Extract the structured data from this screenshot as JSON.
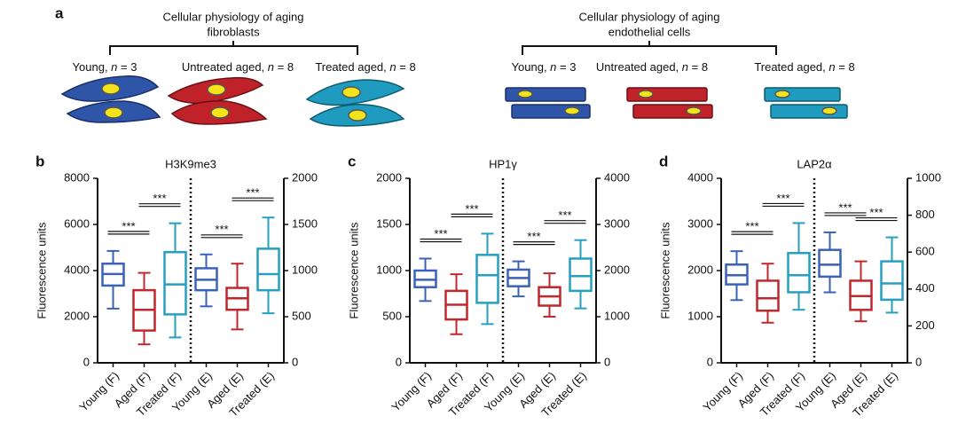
{
  "panel_a": {
    "label": "a",
    "groups": [
      {
        "title": [
          "Cellular physiology of aging",
          "fibroblasts"
        ],
        "conditions": [
          [
            "Young, ",
            "n",
            " = 3"
          ],
          [
            "Untreated aged, ",
            "n",
            " = 8"
          ],
          [
            "Treated aged, ",
            "n",
            " = 8"
          ]
        ]
      },
      {
        "title": [
          "Cellular physiology of aging",
          "endothelial cells"
        ],
        "conditions": [
          [
            "Young, ",
            "n",
            " = 3"
          ],
          [
            "Untreated aged, ",
            "n",
            " = 8"
          ],
          [
            "Treated aged, ",
            "n",
            " = 8"
          ]
        ]
      }
    ]
  },
  "chart_data": [
    {
      "type": "box",
      "panel_label": "b",
      "title": "H3K9me3",
      "ylabel": "Fluorescence units",
      "ylim": [
        0,
        8000
      ],
      "yticks": [
        0,
        2000,
        4000,
        6000,
        8000
      ],
      "y2lim": [
        0,
        2000
      ],
      "y2ticks": [
        0,
        500,
        1000,
        1500,
        2000
      ],
      "series": [
        {
          "name": "Young (F)",
          "color": "#3b62b8",
          "axis": "y",
          "low": 2350,
          "q1": 3350,
          "median": 3850,
          "q3": 4300,
          "high": 4850
        },
        {
          "name": "Aged (F)",
          "color": "#c0282e",
          "axis": "y",
          "low": 800,
          "q1": 1400,
          "median": 2300,
          "q3": 3150,
          "high": 3900
        },
        {
          "name": "Treated (F)",
          "color": "#27a0bf",
          "axis": "y",
          "low": 1100,
          "q1": 2100,
          "median": 3400,
          "q3": 4800,
          "high": 6050
        },
        {
          "name": "Young (E)",
          "color": "#3b62b8",
          "axis": "y2",
          "low": 612,
          "q1": 787,
          "median": 900,
          "q3": 1025,
          "high": 1175
        },
        {
          "name": "Aged (E)",
          "color": "#c0282e",
          "axis": "y2",
          "low": 362,
          "q1": 575,
          "median": 700,
          "q3": 812,
          "high": 1075
        },
        {
          "name": "Treated (E)",
          "color": "#27a0bf",
          "axis": "y2",
          "low": 537,
          "q1": 787,
          "median": 962,
          "q3": 1237,
          "high": 1575
        }
      ],
      "comparisons": [
        {
          "label": "***",
          "pair": [
            0,
            1
          ]
        },
        {
          "label": "***",
          "pair": [
            1,
            2
          ]
        },
        {
          "label": "***",
          "pair": [
            3,
            4
          ]
        },
        {
          "label": "***",
          "pair": [
            4,
            5
          ]
        }
      ]
    },
    {
      "type": "box",
      "panel_label": "c",
      "title": "HP1γ",
      "ylabel": "Fluorescence units",
      "ylim": [
        0,
        2000
      ],
      "yticks": [
        0,
        500,
        1000,
        1500,
        2000
      ],
      "y2lim": [
        0,
        4000
      ],
      "y2ticks": [
        0,
        1000,
        2000,
        3000,
        4000
      ],
      "series": [
        {
          "name": "Young (F)",
          "color": "#3b62b8",
          "axis": "y",
          "low": 670,
          "q1": 820,
          "median": 900,
          "q3": 1000,
          "high": 1130
        },
        {
          "name": "Aged (F)",
          "color": "#c0282e",
          "axis": "y",
          "low": 310,
          "q1": 470,
          "median": 630,
          "q3": 780,
          "high": 960
        },
        {
          "name": "Treated (F)",
          "color": "#27a0bf",
          "axis": "y",
          "low": 420,
          "q1": 650,
          "median": 950,
          "q3": 1170,
          "high": 1400
        },
        {
          "name": "Young (E)",
          "color": "#3b62b8",
          "axis": "y2",
          "low": 1440,
          "q1": 1660,
          "median": 1840,
          "q3": 2020,
          "high": 2200
        },
        {
          "name": "Aged (E)",
          "color": "#c0282e",
          "axis": "y2",
          "low": 1000,
          "q1": 1240,
          "median": 1440,
          "q3": 1640,
          "high": 1940
        },
        {
          "name": "Treated (E)",
          "color": "#27a0bf",
          "axis": "y2",
          "low": 1180,
          "q1": 1560,
          "median": 1880,
          "q3": 2260,
          "high": 2660
        }
      ],
      "comparisons": [
        {
          "label": "***",
          "pair": [
            0,
            1
          ]
        },
        {
          "label": "***",
          "pair": [
            1,
            2
          ]
        },
        {
          "label": "***",
          "pair": [
            3,
            4
          ]
        },
        {
          "label": "***",
          "pair": [
            4,
            5
          ]
        }
      ]
    },
    {
      "type": "box",
      "panel_label": "d",
      "title": "LAP2α",
      "ylabel": "Fluorescence units",
      "ylim": [
        0,
        4000
      ],
      "yticks": [
        0,
        1000,
        2000,
        3000,
        4000
      ],
      "y2lim": [
        0,
        1000
      ],
      "y2ticks": [
        0,
        200,
        400,
        600,
        800,
        1000
      ],
      "series": [
        {
          "name": "Young (F)",
          "color": "#3b62b8",
          "axis": "y",
          "low": 1360,
          "q1": 1700,
          "median": 1900,
          "q3": 2130,
          "high": 2420
        },
        {
          "name": "Aged (F)",
          "color": "#c0282e",
          "axis": "y",
          "low": 870,
          "q1": 1130,
          "median": 1400,
          "q3": 1780,
          "high": 2150
        },
        {
          "name": "Treated (F)",
          "color": "#27a0bf",
          "axis": "y",
          "low": 1150,
          "q1": 1530,
          "median": 1900,
          "q3": 2380,
          "high": 3030
        },
        {
          "name": "Young (E)",
          "color": "#3b62b8",
          "axis": "y2",
          "low": 382,
          "q1": 467,
          "median": 532,
          "q3": 612,
          "high": 707
        },
        {
          "name": "Aged (E)",
          "color": "#c0282e",
          "axis": "y2",
          "low": 225,
          "q1": 287,
          "median": 362,
          "q3": 445,
          "high": 550
        },
        {
          "name": "Treated (E)",
          "color": "#27a0bf",
          "axis": "y2",
          "low": 272,
          "q1": 342,
          "median": 430,
          "q3": 550,
          "high": 680
        }
      ],
      "comparisons": [
        {
          "label": "***",
          "pair": [
            0,
            1
          ]
        },
        {
          "label": "***",
          "pair": [
            1,
            2
          ]
        },
        {
          "label": "***",
          "pair": [
            3,
            4
          ]
        },
        {
          "label": "***",
          "pair": [
            4,
            5
          ]
        }
      ]
    }
  ]
}
